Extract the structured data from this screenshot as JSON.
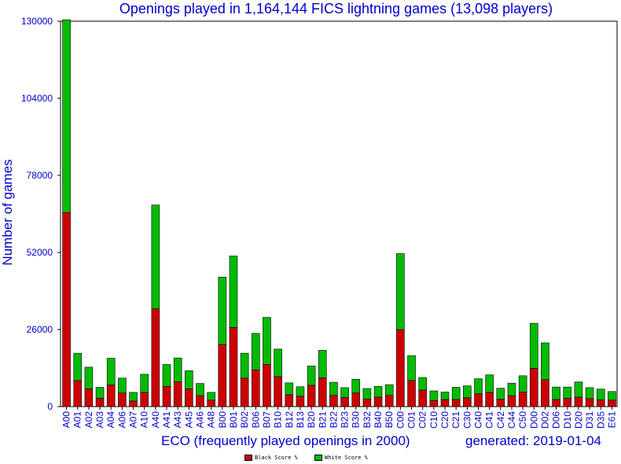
{
  "chart_data": {
    "type": "bar",
    "stacked": true,
    "title": "Openings played in 1,164,144 FICS lightning games (13,098 players)",
    "xlabel": "ECO (frequently played openings in 2000)",
    "ylabel": "Number of games",
    "note": "generated: 2019-01-04",
    "ylim": [
      0,
      130000
    ],
    "yticks": [
      0,
      26000,
      52000,
      78000,
      104000,
      130000
    ],
    "ytick_labels": [
      "0",
      "26000",
      "52000",
      "78000",
      "104000",
      "130000"
    ],
    "legend_position": "bottom",
    "categories": [
      "A00",
      "A01",
      "A02",
      "A03",
      "A04",
      "A06",
      "A07",
      "A10",
      "A40",
      "A41",
      "A43",
      "A45",
      "A46",
      "A48",
      "B00",
      "B01",
      "B02",
      "B06",
      "B07",
      "B10",
      "B12",
      "B13",
      "B20",
      "B21",
      "B22",
      "B23",
      "B30",
      "B32",
      "B40",
      "B50",
      "C00",
      "C01",
      "C02",
      "C10",
      "C20",
      "C21",
      "C30",
      "C40",
      "C41",
      "C42",
      "C44",
      "C50",
      "D00",
      "D02",
      "D06",
      "D10",
      "D20",
      "D31",
      "D35",
      "E61"
    ],
    "series": [
      {
        "name": "Black Score %",
        "color": "#cc0000",
        "values": [
          65500,
          8800,
          6000,
          2800,
          7300,
          4600,
          1900,
          4800,
          33000,
          6800,
          8400,
          6000,
          3700,
          2200,
          21000,
          26700,
          9600,
          12400,
          14200,
          10100,
          4000,
          3500,
          7200,
          9700,
          3800,
          3100,
          4600,
          2600,
          3200,
          3800,
          26000,
          8800,
          5600,
          2100,
          2400,
          2400,
          3000,
          4300,
          4800,
          2500,
          3700,
          4900,
          12900,
          9100,
          2400,
          2800,
          3200,
          2700,
          2300,
          2200
        ]
      },
      {
        "name": "White Score %",
        "color": "#00bb00",
        "values": [
          65000,
          9200,
          7300,
          3700,
          9000,
          5000,
          2900,
          6100,
          35000,
          7400,
          8000,
          6100,
          4100,
          2600,
          22700,
          24100,
          8400,
          12300,
          15900,
          9300,
          4000,
          3200,
          6500,
          9300,
          4400,
          3300,
          4600,
          3500,
          3600,
          3600,
          25600,
          8400,
          4200,
          3200,
          2500,
          4100,
          4000,
          5100,
          5900,
          3700,
          4200,
          5500,
          15200,
          12400,
          4200,
          3800,
          5100,
          3700,
          3600,
          2900
        ]
      }
    ]
  }
}
